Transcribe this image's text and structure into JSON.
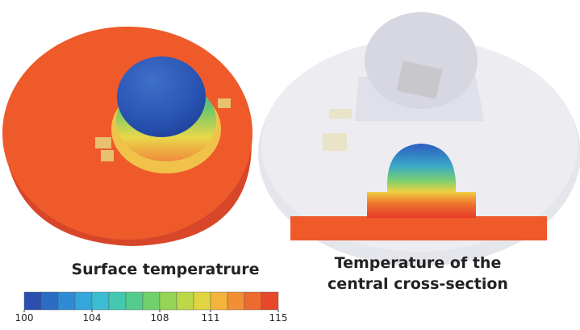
{
  "captions": {
    "left": "Surface temperatrure",
    "right": [
      "Temperature of the",
      "central cross-section"
    ]
  },
  "colorbar": {
    "lim": [
      100,
      115
    ],
    "ticks": [
      100,
      104,
      108,
      111,
      115
    ]
  }
}
